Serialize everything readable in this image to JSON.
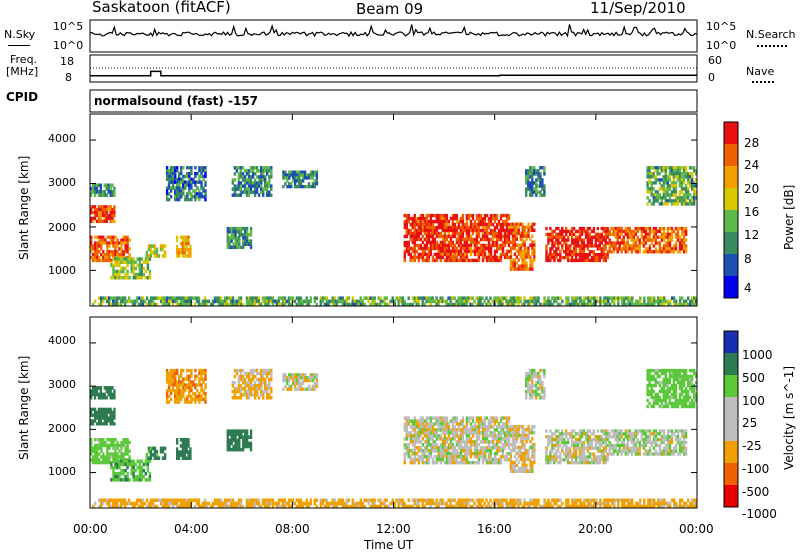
{
  "header": {
    "station": "Saskatoon (fitACF)",
    "beam": "Beam 09",
    "date": "11/Sep/2010"
  },
  "noise_panel": {
    "left_label": "N.Sky",
    "left_ticks": [
      "10^5",
      "10^0"
    ],
    "right_label": "N.Search",
    "right_ticks": [
      "10^5",
      "10^0"
    ]
  },
  "freq_panel": {
    "left_label_line1": "Freq.",
    "left_label_line2": "[MHz]",
    "left_ticks": [
      "18",
      "8"
    ],
    "right_label": "Nave",
    "right_ticks": [
      "60",
      "0"
    ]
  },
  "cpid": {
    "label": "CPID",
    "program": "normalsound (fast) -157"
  },
  "x_axis": {
    "ticks": [
      "00:00",
      "04:00",
      "08:00",
      "12:00",
      "16:00",
      "20:00",
      "00:00"
    ],
    "label": "Time UT"
  },
  "power_panel": {
    "ylabel": "Slant Range [km]",
    "yticks": [
      "1000",
      "2000",
      "3000",
      "4000"
    ],
    "colorbar_label": "Power [dB]",
    "colorbar_ticks": [
      "4",
      "8",
      "12",
      "16",
      "20",
      "24",
      "28"
    ],
    "colorbar_colors": [
      "#0000f0",
      "#1e4fb4",
      "#3a8a60",
      "#5fb84a",
      "#d9c800",
      "#f5a000",
      "#f06000",
      "#e81010"
    ]
  },
  "velocity_panel": {
    "ylabel": "Slant Range [km]",
    "yticks": [
      "1000",
      "2000",
      "3000",
      "4000"
    ],
    "colorbar_label": "Velocity [m s^-1]",
    "colorbar_ticks": [
      "1000",
      "500",
      "100",
      "25",
      "-25",
      "-100",
      "-500",
      "-1000"
    ],
    "colorbar_colors": [
      "#1a2fb0",
      "#2e7a52",
      "#5bc93a",
      "#bdbdbd",
      "#bdbdbd",
      "#f0a000",
      "#f06000",
      "#e80000"
    ]
  },
  "chart_data": {
    "type": "heatmap",
    "title": "Saskatoon (fitACF)  Beam 09  11/Sep/2010",
    "xlabel": "Time UT",
    "ylabel": "Slant Range [km]",
    "xlim": [
      0,
      24
    ],
    "ylim": [
      180,
      4600
    ],
    "xticks_hours": [
      0,
      4,
      8,
      12,
      16,
      20,
      24
    ],
    "yticks": [
      1000,
      2000,
      3000,
      4000
    ],
    "grid": false,
    "power_scale": [
      0,
      30
    ],
    "velocity_scale": [
      -1000,
      1000
    ],
    "echo_regions": [
      {
        "t0": 0.0,
        "t1": 1.0,
        "r0": 2100,
        "r1": 2500,
        "power": 26,
        "velocity": 150
      },
      {
        "t0": 0.0,
        "t1": 1.6,
        "r0": 1200,
        "r1": 1800,
        "power": 24,
        "velocity": 60
      },
      {
        "t0": 0.0,
        "t1": 1.0,
        "r0": 2700,
        "r1": 3000,
        "power": 10,
        "velocity": 300
      },
      {
        "t0": 0.8,
        "t1": 2.4,
        "r0": 800,
        "r1": 1300,
        "power": 14,
        "velocity": 80
      },
      {
        "t0": 2.2,
        "t1": 3.0,
        "r0": 1300,
        "r1": 1600,
        "power": 16,
        "velocity": 120
      },
      {
        "t0": 3.4,
        "t1": 4.0,
        "r0": 1300,
        "r1": 1800,
        "power": 20,
        "velocity": 150
      },
      {
        "t0": 3.0,
        "t1": 4.6,
        "r0": 2600,
        "r1": 3400,
        "power": 8,
        "velocity": -80
      },
      {
        "t0": 5.4,
        "t1": 6.4,
        "r0": 1500,
        "r1": 2000,
        "power": 10,
        "velocity": 200
      },
      {
        "t0": 5.6,
        "t1": 7.2,
        "r0": 2700,
        "r1": 3400,
        "power": 9,
        "velocity": -40
      },
      {
        "t0": 7.6,
        "t1": 9.0,
        "r0": 2900,
        "r1": 3300,
        "power": 9,
        "velocity": 0
      },
      {
        "t0": 12.4,
        "t1": 16.6,
        "r0": 1200,
        "r1": 2300,
        "power": 27,
        "velocity": 0
      },
      {
        "t0": 16.6,
        "t1": 17.6,
        "r0": 1000,
        "r1": 2100,
        "power": 24,
        "velocity": -10
      },
      {
        "t0": 17.2,
        "t1": 18.0,
        "r0": 2700,
        "r1": 3400,
        "power": 9,
        "velocity": 10
      },
      {
        "t0": 18.0,
        "t1": 20.5,
        "r0": 1200,
        "r1": 2000,
        "power": 28,
        "velocity": 0
      },
      {
        "t0": 20.5,
        "t1": 23.6,
        "r0": 1400,
        "r1": 2000,
        "power": 24,
        "velocity": 10
      },
      {
        "t0": 22.0,
        "t1": 24.0,
        "r0": 2500,
        "r1": 3400,
        "power": 12,
        "velocity": 60
      },
      {
        "t0": 0.0,
        "t1": 24.0,
        "r0": 180,
        "r1": 400,
        "power": 12,
        "velocity": -50
      }
    ],
    "transmit_frequency_mhz": [
      {
        "t0": 0.0,
        "t1": 2.4,
        "value": 10.6
      },
      {
        "t0": 2.4,
        "t1": 2.8,
        "value": 12.4
      },
      {
        "t0": 2.8,
        "t1": 16.2,
        "value": 10.6
      },
      {
        "t0": 16.2,
        "t1": 24.0,
        "value": 10.8
      }
    ],
    "nave_dotted_level": 30,
    "noise_sky_level": "10^0 to 10^5"
  }
}
